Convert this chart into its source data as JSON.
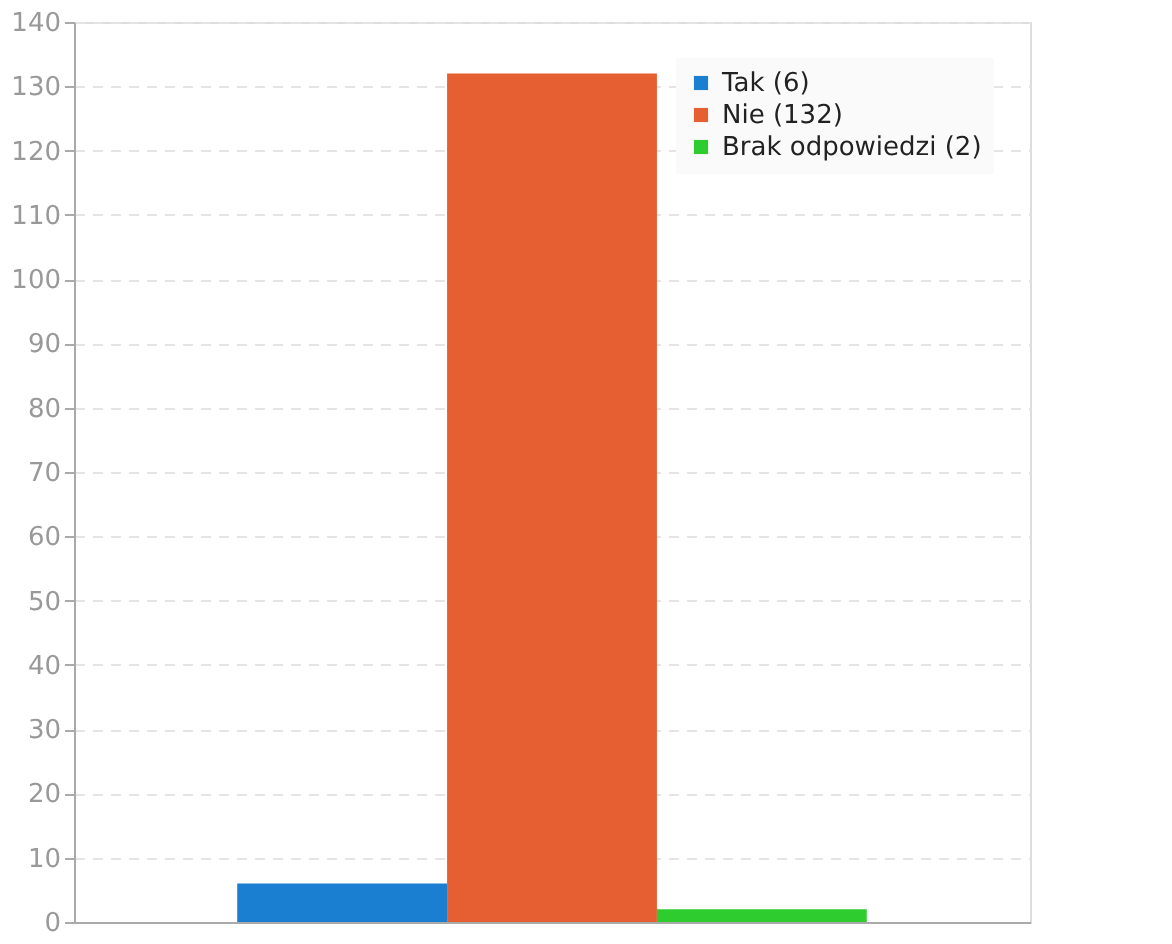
{
  "chart_data": {
    "type": "bar",
    "categories": [
      null
    ],
    "series": [
      {
        "name": "Tak (6)",
        "color": "#1a7fd0",
        "values": [
          6
        ]
      },
      {
        "name": "Nie (132)",
        "color": "#e65f32",
        "values": [
          132
        ]
      },
      {
        "name": "Brak odpowiedzi (2)",
        "color": "#2ecc2e",
        "values": [
          2
        ]
      }
    ],
    "ylim": [
      0,
      140
    ],
    "yticks": [
      0,
      10,
      20,
      30,
      40,
      50,
      60,
      70,
      80,
      90,
      100,
      110,
      120,
      130,
      140
    ],
    "grid": "y",
    "legend": "top right"
  }
}
